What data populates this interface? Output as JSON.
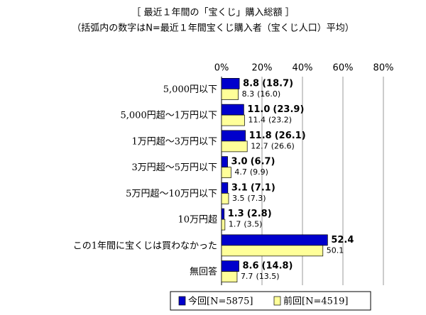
{
  "chart_data": {
    "type": "bar",
    "orientation": "horizontal",
    "title": "［ 最近１年間の「宝くじ」購入総額 ］",
    "subtitle": "（括弧内の数字はN=最近１年間宝くじ購入者（宝くじ人口）平均）",
    "categories": [
      "5,000円以下",
      "5,000円超～1万円以下",
      "1万円超～3万円以下",
      "3万円超～5万円以下",
      "5万円超～10万円以下",
      "10万円超",
      "この1年間に宝くじは買わなかった",
      "無回答"
    ],
    "series": [
      {
        "name": "今回[N=5875]",
        "color": "#0000cc",
        "values": [
          8.8,
          11.0,
          11.8,
          3.0,
          3.1,
          1.3,
          52.4,
          8.6
        ],
        "value_labels": [
          "8.8",
          "11.0",
          "11.8",
          "3.0",
          "3.1",
          "1.3",
          "52.4",
          "8.6"
        ],
        "value_notes": [
          "(18.7)",
          "(23.9)",
          "(26.1)",
          "(6.7)",
          "(7.1)",
          "(2.8)",
          null,
          "(14.8)"
        ]
      },
      {
        "name": "前回[N=4519]",
        "color": "#ffff99",
        "values": [
          8.3,
          11.4,
          12.7,
          4.7,
          3.5,
          1.7,
          50.1,
          7.7
        ],
        "value_labels": [
          "8.3",
          "11.4",
          "12.7",
          "4.7",
          "3.5",
          "1.7",
          "50.1",
          "7.7"
        ],
        "value_notes": [
          "(16.0)",
          "(23.2)",
          "(26.6)",
          "(9.9)",
          "(7.3)",
          "(3.5)",
          null,
          "(13.5)"
        ]
      }
    ],
    "xlim": [
      0,
      80
    ],
    "xticks": [
      {
        "value": 0,
        "label": "0%"
      },
      {
        "value": 20,
        "label": "20%"
      },
      {
        "value": 40,
        "label": "40%"
      },
      {
        "value": 60,
        "label": "60%"
      },
      {
        "value": 80,
        "label": "80%"
      }
    ],
    "grid": true
  }
}
